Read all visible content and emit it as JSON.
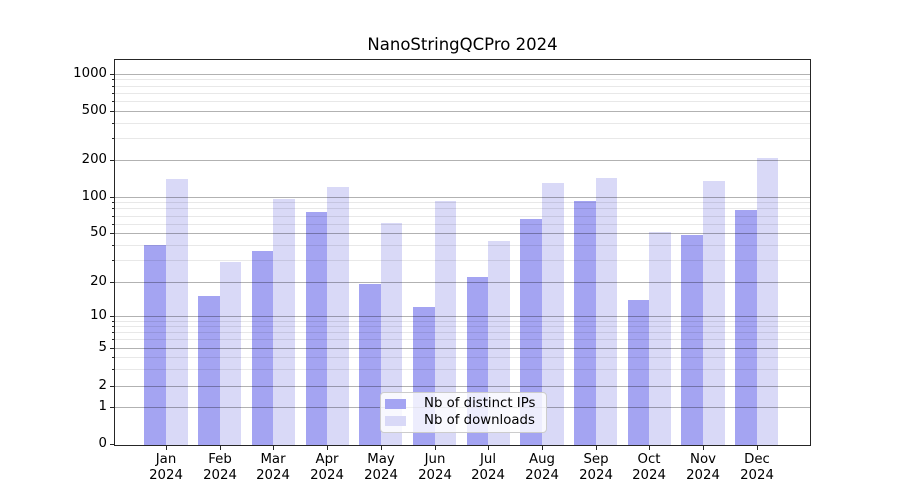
{
  "chart_data": {
    "type": "bar",
    "title": "NanoStringQCPro 2024",
    "categories": [
      "Jan",
      "Feb",
      "Mar",
      "Apr",
      "May",
      "Jun",
      "Jul",
      "Aug",
      "Sep",
      "Oct",
      "Nov",
      "Dec"
    ],
    "year_label": "2024",
    "series": [
      {
        "name": "Nb of distinct IPs",
        "color": "#a4a4f2",
        "values": [
          40,
          15,
          36,
          75,
          19,
          12,
          22,
          66,
          92,
          14,
          48,
          78
        ]
      },
      {
        "name": "Nb of downloads",
        "color": "#d9d9f7",
        "values": [
          140,
          29,
          96,
          120,
          61,
          93,
          43,
          128,
          143,
          51,
          134,
          207
        ]
      }
    ],
    "y_axis": {
      "scale": "symlog",
      "ticks": [
        0,
        1,
        2,
        5,
        10,
        20,
        50,
        100,
        200,
        500,
        1000
      ],
      "minor_ticks": [
        3,
        4,
        6,
        7,
        8,
        9,
        30,
        40,
        60,
        70,
        80,
        90,
        300,
        400,
        600,
        700,
        800,
        900
      ],
      "ylim": [
        0,
        1000
      ]
    },
    "grid": true,
    "legend_position": "lower center",
    "colors": {
      "grid_major": "#b2b2b2",
      "grid_minor": "#e8e8e8",
      "axis": "#262626",
      "background": "#ffffff"
    }
  }
}
